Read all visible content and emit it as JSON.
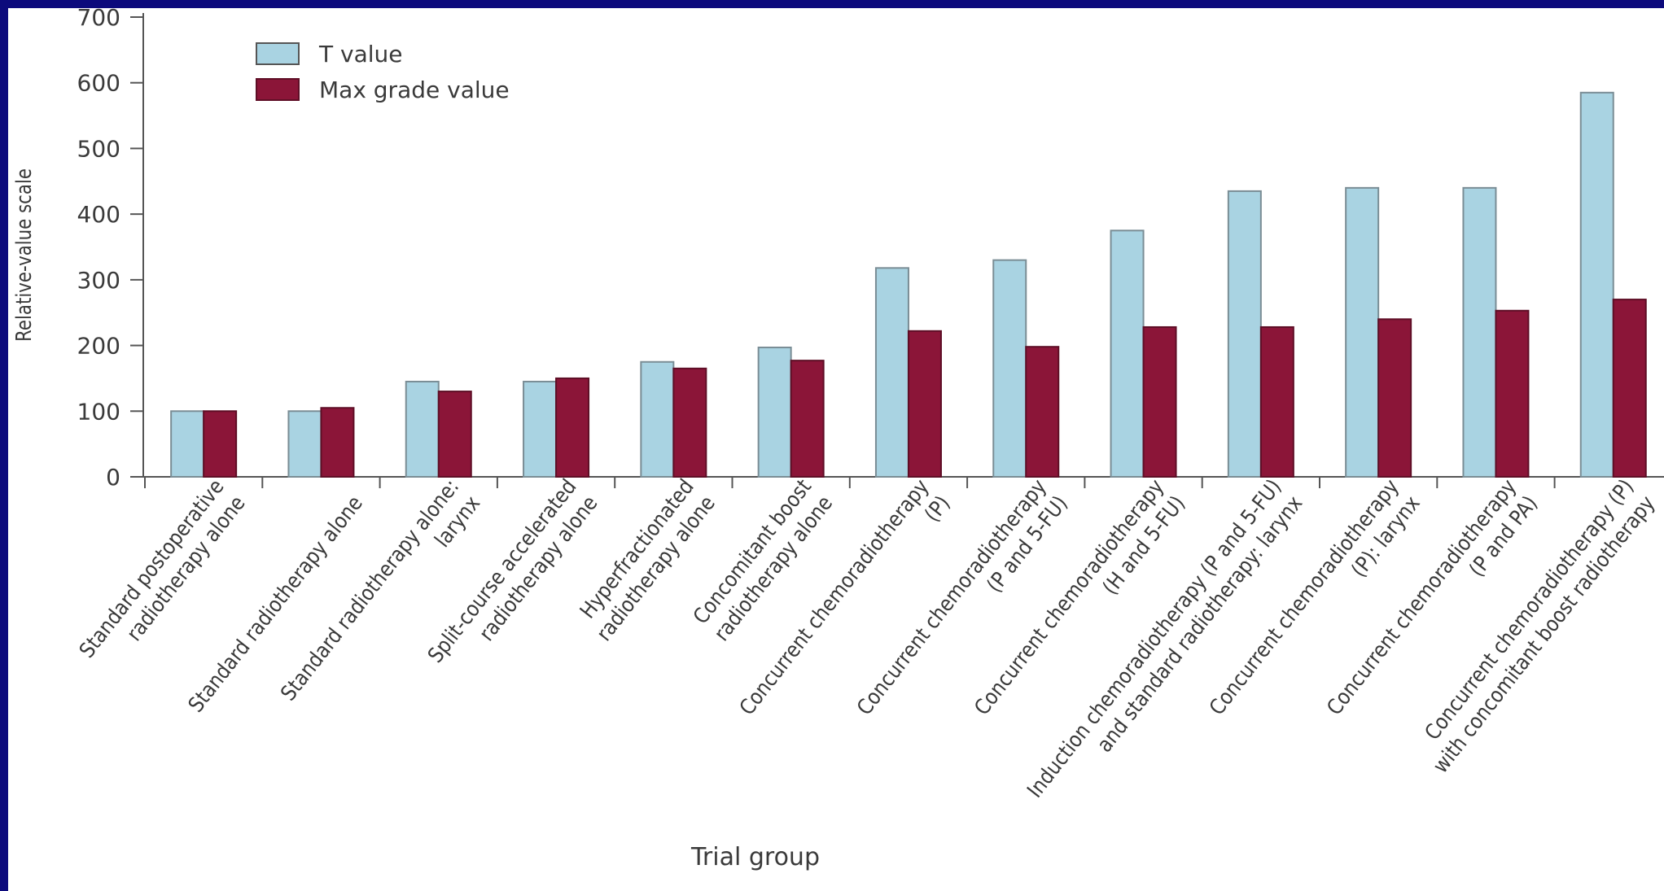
{
  "chart_data": {
    "type": "bar",
    "title": "",
    "xlabel": "Trial group",
    "ylabel": "Relative-value scale",
    "ylim": [
      0,
      700
    ],
    "yticks": [
      0,
      100,
      200,
      300,
      400,
      500,
      600,
      700
    ],
    "grid": false,
    "legend_position": "top-left",
    "categories": [
      [
        "Standard postoperative",
        "radiotherapy alone"
      ],
      [
        "Standard radiotherapy alone"
      ],
      [
        "Standard radiotherapy alone:",
        "larynx"
      ],
      [
        "Split-course accelerated",
        "radiotherapy alone"
      ],
      [
        "Hyperfractionated",
        "radiotherapy alone"
      ],
      [
        "Concomitant boost",
        "radiotherapy alone"
      ],
      [
        "Concurrent chemoradiotherapy",
        "(P)"
      ],
      [
        "Concurrent chemoradiotherapy",
        "(P and 5-FU)"
      ],
      [
        "Concurrent chemoradiotherapy",
        "(H and 5-FU)"
      ],
      [
        "Induction chemoradiotherapy (P and 5-FU)",
        "and standard radiotherapy: larynx"
      ],
      [
        "Concurrent chemoradiotherapy",
        "(P): larynx"
      ],
      [
        "Concurrent chemoradiotherapy",
        "(P and PA)"
      ],
      [
        "Concurrent chemoradiotherapy (P)",
        "with concomitant boost radiotherapy"
      ]
    ],
    "series": [
      {
        "name": "T value",
        "color": "#a9d3e2",
        "values": [
          100,
          100,
          145,
          145,
          175,
          197,
          318,
          330,
          375,
          435,
          440,
          440,
          585
        ]
      },
      {
        "name": "Max grade value",
        "color": "#8b1538",
        "values": [
          100,
          105,
          130,
          150,
          165,
          177,
          222,
          198,
          228,
          228,
          240,
          253,
          270
        ]
      }
    ]
  }
}
